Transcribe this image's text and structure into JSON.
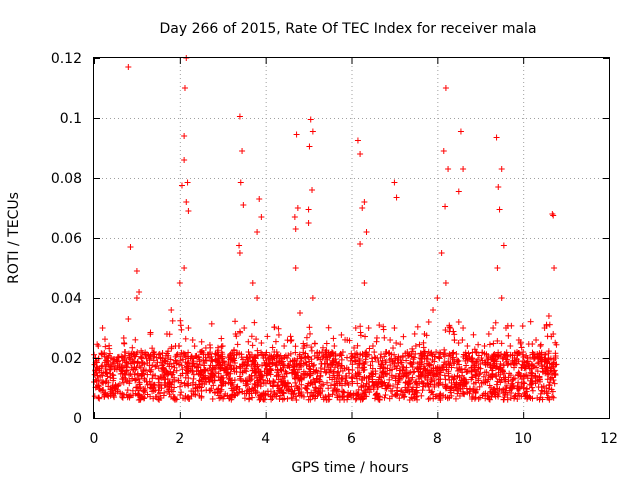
{
  "chart_data": {
    "type": "scatter",
    "title": "Day 266 of 2015, Rate Of TEC Index for receiver mala",
    "xlabel": "GPS time / hours",
    "ylabel": "ROTI / TECUs",
    "xlim": [
      0,
      12
    ],
    "ylim": [
      0,
      0.12
    ],
    "x_ticks": [
      0,
      2,
      4,
      6,
      8,
      10,
      12
    ],
    "y_ticks": [
      0,
      0.02,
      0.04,
      0.06,
      0.08,
      0.1,
      0.12
    ],
    "x_tick_labels": [
      "0",
      "2",
      "4",
      "6",
      "8",
      "10",
      "12"
    ],
    "y_tick_labels": [
      "0",
      "0.02",
      "0.04",
      "0.06",
      "0.08",
      "0.1",
      "0.12"
    ],
    "grid": true,
    "marker": "+",
    "color": "#ff0000",
    "series": [
      {
        "name": "ROTI",
        "x": [
          0.0,
          0.1,
          0.2,
          0.3,
          0.4,
          0.5,
          0.6,
          0.7,
          0.8,
          0.9,
          1.0,
          1.1,
          1.2,
          1.3,
          1.4,
          1.5,
          1.6,
          1.7,
          1.8,
          1.9,
          2.0,
          2.1,
          2.2,
          2.3,
          2.4,
          2.5,
          2.6,
          2.7,
          2.8,
          2.9,
          3.0,
          3.1,
          3.2,
          3.3,
          3.4,
          3.5,
          3.6,
          3.7,
          3.8,
          3.9,
          4.0,
          4.1,
          4.2,
          4.3,
          4.4,
          4.5,
          4.6,
          4.7,
          4.8,
          4.9,
          5.0,
          5.1,
          5.2,
          5.3,
          5.4,
          5.5,
          5.6,
          5.7,
          5.8,
          5.9,
          6.0,
          6.1,
          6.2,
          6.3,
          6.4,
          6.5,
          6.6,
          6.7,
          6.8,
          6.9,
          7.0,
          7.1,
          7.2,
          7.3,
          7.4,
          7.5,
          7.6,
          7.7,
          7.8,
          7.9,
          8.0,
          8.1,
          8.2,
          8.3,
          8.4,
          8.5,
          8.6,
          8.7,
          8.8,
          8.9,
          9.0,
          9.1,
          9.2,
          9.3,
          9.4,
          9.5,
          9.6,
          9.7,
          9.8,
          9.9,
          10.0,
          10.1,
          10.2,
          10.3,
          10.4,
          10.5,
          10.6,
          10.7,
          10.75,
          0.8,
          0.85,
          1.0,
          1.05,
          2.05,
          2.1,
          2.12,
          2.15,
          2.18,
          2.2,
          2.1,
          2.15,
          3.4,
          3.45,
          3.42,
          3.48,
          3.38,
          3.85,
          3.9,
          3.8,
          4.72,
          4.75,
          4.7,
          4.68,
          5.05,
          5.1,
          5.02,
          5.08,
          5.0,
          6.15,
          6.2,
          6.25,
          6.3,
          6.35,
          7.0,
          7.05,
          8.2,
          8.25,
          8.15,
          8.18,
          8.55,
          8.6,
          8.5,
          9.38,
          9.42,
          9.45,
          9.5,
          9.55,
          10.68,
          10.7,
          10.72
        ],
        "y": [
          0.012,
          0.024,
          0.03,
          0.015,
          0.02,
          0.011,
          0.018,
          0.025,
          0.033,
          0.019,
          0.04,
          0.014,
          0.021,
          0.016,
          0.022,
          0.013,
          0.02,
          0.028,
          0.036,
          0.024,
          0.045,
          0.05,
          0.03,
          0.026,
          0.018,
          0.022,
          0.016,
          0.02,
          0.014,
          0.019,
          0.024,
          0.015,
          0.02,
          0.028,
          0.055,
          0.03,
          0.022,
          0.045,
          0.04,
          0.025,
          0.02,
          0.016,
          0.022,
          0.014,
          0.018,
          0.02,
          0.026,
          0.05,
          0.035,
          0.024,
          0.065,
          0.04,
          0.02,
          0.018,
          0.022,
          0.016,
          0.024,
          0.018,
          0.022,
          0.026,
          0.02,
          0.03,
          0.058,
          0.045,
          0.03,
          0.024,
          0.02,
          0.018,
          0.022,
          0.026,
          0.03,
          0.02,
          0.016,
          0.022,
          0.018,
          0.024,
          0.02,
          0.028,
          0.032,
          0.036,
          0.04,
          0.055,
          0.045,
          0.03,
          0.026,
          0.032,
          0.03,
          0.024,
          0.02,
          0.022,
          0.018,
          0.024,
          0.028,
          0.03,
          0.05,
          0.04,
          0.03,
          0.024,
          0.02,
          0.026,
          0.022,
          0.02,
          0.018,
          0.026,
          0.024,
          0.03,
          0.034,
          0.028,
          0.02,
          0.117,
          0.057,
          0.049,
          0.042,
          0.0775,
          0.094,
          0.11,
          0.12,
          0.0785,
          0.069,
          0.086,
          0.072,
          0.1005,
          0.089,
          0.0785,
          0.071,
          0.0575,
          0.073,
          0.067,
          0.062,
          0.0945,
          0.07,
          0.063,
          0.067,
          0.0995,
          0.0955,
          0.0905,
          0.076,
          0.0695,
          0.0925,
          0.088,
          0.07,
          0.072,
          0.062,
          0.0785,
          0.0735,
          0.11,
          0.083,
          0.089,
          0.0705,
          0.0955,
          0.083,
          0.0755,
          0.0935,
          0.077,
          0.0695,
          0.083,
          0.0575,
          0.068,
          0.0675,
          0.05
        ]
      }
    ]
  }
}
